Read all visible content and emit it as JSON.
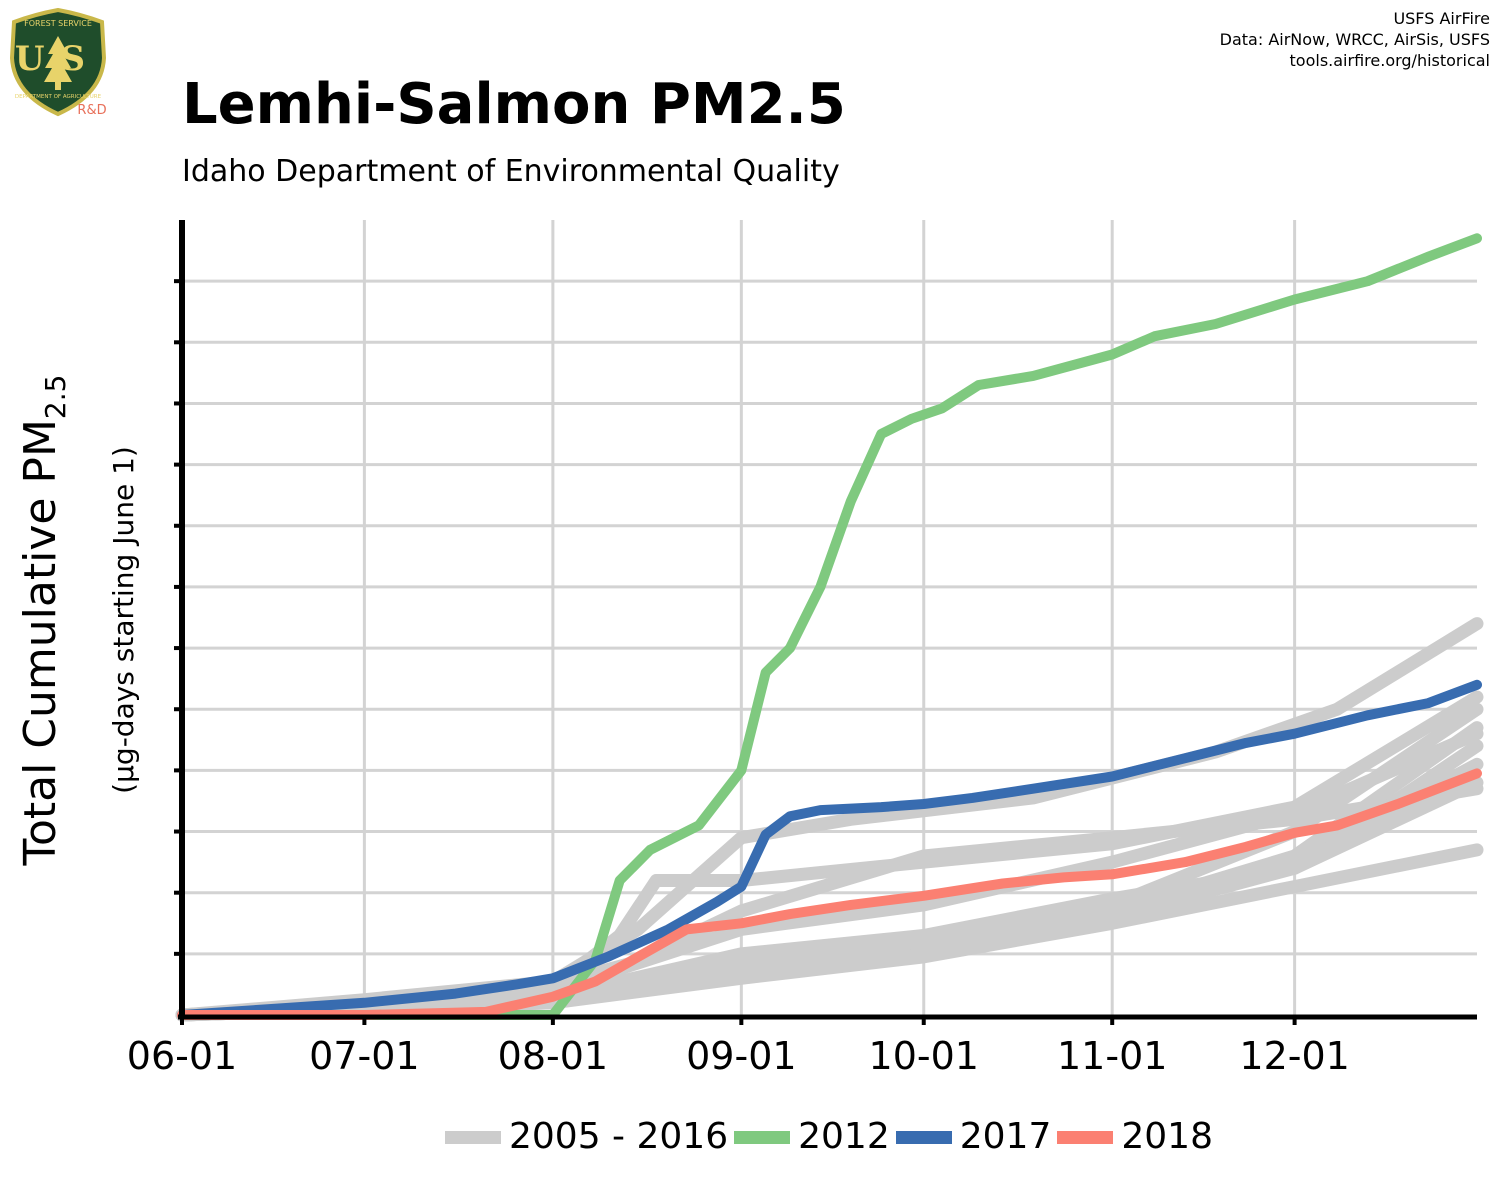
{
  "header": {
    "title": "Lemhi-Salmon PM2.5",
    "subtitle": "Idaho Department of Environmental Quality",
    "credits": [
      "USFS AirFire",
      "Data: AirNow, WRCC, AirSis, USFS",
      "tools.airfire.org/historical"
    ]
  },
  "logo": {
    "text_top": "FOREST SERVICE",
    "text_us": "US",
    "text_bottom": "DEPARTMENT OF AGRICULTURE",
    "text_rd": "R&D",
    "colors": {
      "shield": "#1f4d2b",
      "border": "#c9b84a",
      "letters": "#e8d36a",
      "rd": "#e8705a"
    }
  },
  "chart_data": {
    "type": "line",
    "ylabel_main": "Total Cumulative PM",
    "ylabel_sub": "2.5",
    "ylabel_units": "(µg-days starting June 1)",
    "x_tick_labels": [
      "06-01",
      "07-01",
      "08-01",
      "09-01",
      "10-01",
      "11-01",
      "12-01"
    ],
    "x_tick_days": [
      0,
      30,
      61,
      92,
      122,
      153,
      183
    ],
    "xlim": [
      0,
      213
    ],
    "ylim": [
      0,
      13
    ],
    "y_tick_values": [
      1,
      2,
      3,
      4,
      5,
      6,
      7,
      8,
      9,
      10,
      11,
      12
    ],
    "y_tick_labels_shown": false,
    "grid": true,
    "legend_position": "bottom",
    "series": [
      {
        "name": "2005 - 2016",
        "color": "#cccccc",
        "width": 13,
        "group": true,
        "tracks": [
          [
            [
              0,
              0
            ],
            [
              30,
              0.25
            ],
            [
              61,
              0.55
            ],
            [
              75,
              1.4
            ],
            [
              92,
              2.9
            ],
            [
              110,
              3.2
            ],
            [
              140,
              3.55
            ],
            [
              170,
              4.3
            ],
            [
              190,
              5
            ],
            [
              213,
              6.4
            ]
          ],
          [
            [
              0,
              0
            ],
            [
              30,
              0.2
            ],
            [
              61,
              0.45
            ],
            [
              72,
              1.3
            ],
            [
              78,
              2.2
            ],
            [
              92,
              2.2
            ],
            [
              122,
              2.5
            ],
            [
              153,
              2.8
            ],
            [
              183,
              3.4
            ],
            [
              213,
              5.2
            ]
          ],
          [
            [
              0,
              0
            ],
            [
              30,
              0.2
            ],
            [
              61,
              0.5
            ],
            [
              74,
              0.85
            ],
            [
              92,
              1.7
            ],
            [
              122,
              2.6
            ],
            [
              153,
              2.9
            ],
            [
              183,
              3.2
            ],
            [
              213,
              3.7
            ]
          ],
          [
            [
              0,
              0
            ],
            [
              30,
              0.15
            ],
            [
              61,
              0.35
            ],
            [
              92,
              0.8
            ],
            [
              122,
              1.05
            ],
            [
              153,
              1.8
            ],
            [
              183,
              3.0
            ],
            [
              213,
              5.0
            ]
          ],
          [
            [
              0,
              0
            ],
            [
              30,
              0.15
            ],
            [
              61,
              0.3
            ],
            [
              92,
              1.0
            ],
            [
              122,
              1.3
            ],
            [
              153,
              1.9
            ],
            [
              183,
              2.4
            ],
            [
              213,
              4.4
            ]
          ],
          [
            [
              0,
              0
            ],
            [
              30,
              0.1
            ],
            [
              61,
              0.25
            ],
            [
              92,
              0.7
            ],
            [
              122,
              1.1
            ],
            [
              153,
              1.6
            ],
            [
              183,
              2.5
            ],
            [
              213,
              4.1
            ]
          ],
          [
            [
              0,
              0
            ],
            [
              30,
              0.1
            ],
            [
              61,
              0.25
            ],
            [
              92,
              0.8
            ],
            [
              122,
              1.2
            ],
            [
              153,
              1.7
            ],
            [
              183,
              2.6
            ],
            [
              213,
              4.7
            ]
          ],
          [
            [
              0,
              0
            ],
            [
              30,
              0.1
            ],
            [
              61,
              0.2
            ],
            [
              92,
              0.9
            ],
            [
              122,
              1.2
            ],
            [
              153,
              1.6
            ],
            [
              183,
              2.4
            ],
            [
              213,
              3.8
            ]
          ],
          [
            [
              0,
              0
            ],
            [
              30,
              0.1
            ],
            [
              61,
              0.2
            ],
            [
              92,
              0.6
            ],
            [
              122,
              0.95
            ],
            [
              153,
              1.5
            ],
            [
              183,
              2.1
            ],
            [
              213,
              2.7
            ]
          ],
          [
            [
              0,
              0
            ],
            [
              30,
              0.15
            ],
            [
              61,
              0.4
            ],
            [
              92,
              1.4
            ],
            [
              122,
              1.8
            ],
            [
              153,
              2.5
            ],
            [
              183,
              3.3
            ],
            [
              213,
              4.6
            ]
          ]
        ]
      },
      {
        "name": "2012",
        "color": "#7fc97f",
        "width": 10,
        "points": [
          [
            0,
            0
          ],
          [
            30,
            0
          ],
          [
            61,
            0
          ],
          [
            68,
            0.9
          ],
          [
            72,
            2.2
          ],
          [
            77,
            2.7
          ],
          [
            85,
            3.1
          ],
          [
            92,
            4.0
          ],
          [
            96,
            5.6
          ],
          [
            100,
            6.0
          ],
          [
            105,
            7.0
          ],
          [
            110,
            8.4
          ],
          [
            115,
            9.5
          ],
          [
            120,
            9.75
          ],
          [
            125,
            9.92
          ],
          [
            131,
            10.3
          ],
          [
            140,
            10.45
          ],
          [
            153,
            10.8
          ],
          [
            160,
            11.1
          ],
          [
            170,
            11.3
          ],
          [
            183,
            11.7
          ],
          [
            195,
            12.0
          ],
          [
            205,
            12.4
          ],
          [
            213,
            12.7
          ]
        ]
      },
      {
        "name": "2017",
        "color": "#386cb0",
        "width": 10,
        "points": [
          [
            0,
            0
          ],
          [
            15,
            0.1
          ],
          [
            30,
            0.2
          ],
          [
            45,
            0.35
          ],
          [
            55,
            0.5
          ],
          [
            61,
            0.6
          ],
          [
            70,
            0.95
          ],
          [
            80,
            1.4
          ],
          [
            88,
            1.85
          ],
          [
            92,
            2.1
          ],
          [
            96,
            2.95
          ],
          [
            100,
            3.25
          ],
          [
            105,
            3.35
          ],
          [
            115,
            3.4
          ],
          [
            122,
            3.45
          ],
          [
            130,
            3.55
          ],
          [
            140,
            3.7
          ],
          [
            153,
            3.9
          ],
          [
            165,
            4.2
          ],
          [
            175,
            4.45
          ],
          [
            183,
            4.6
          ],
          [
            195,
            4.9
          ],
          [
            205,
            5.1
          ],
          [
            213,
            5.4
          ]
        ]
      },
      {
        "name": "2018",
        "color": "#fb8072",
        "width": 10,
        "points": [
          [
            0,
            0
          ],
          [
            30,
            0
          ],
          [
            50,
            0.05
          ],
          [
            61,
            0.3
          ],
          [
            68,
            0.55
          ],
          [
            75,
            0.95
          ],
          [
            83,
            1.4
          ],
          [
            92,
            1.5
          ],
          [
            100,
            1.65
          ],
          [
            110,
            1.8
          ],
          [
            122,
            1.95
          ],
          [
            135,
            2.15
          ],
          [
            145,
            2.25
          ],
          [
            153,
            2.3
          ],
          [
            165,
            2.5
          ],
          [
            175,
            2.75
          ],
          [
            183,
            2.98
          ],
          [
            190,
            3.1
          ],
          [
            200,
            3.45
          ],
          [
            213,
            3.95
          ]
        ]
      }
    ]
  }
}
